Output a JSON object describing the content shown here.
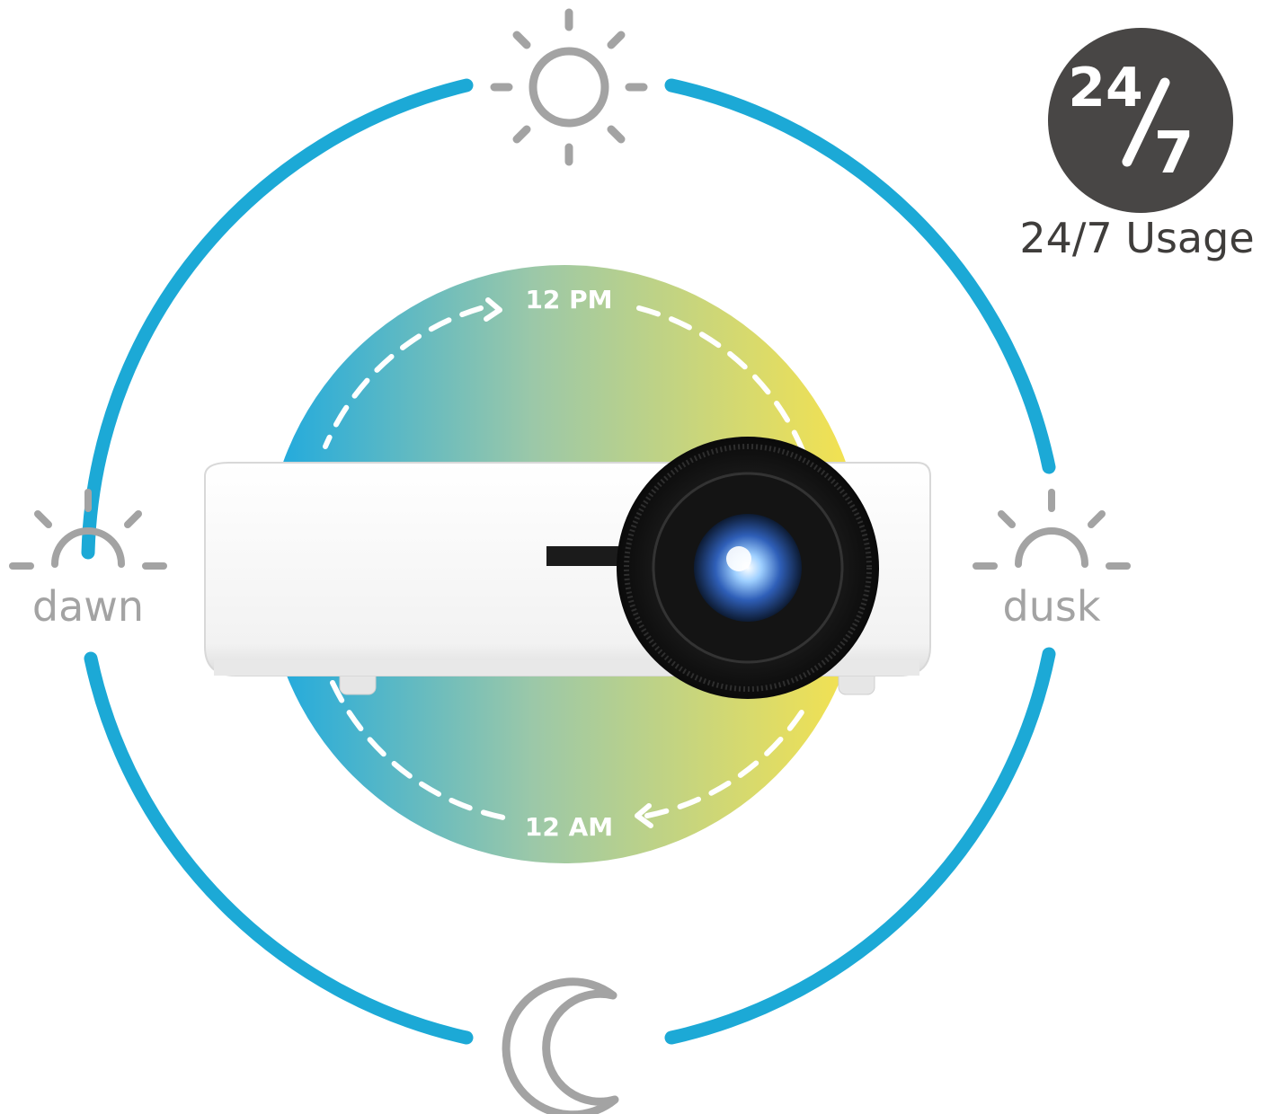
{
  "badge": {
    "top": "24",
    "bottom": "7",
    "caption": "24/7 Usage"
  },
  "labels": {
    "dawn": "dawn",
    "dusk": "dusk",
    "noon_marker": "12 PM",
    "midnight_marker": "12 AM"
  },
  "icons": {
    "top": "sun-icon",
    "left": "sunrise-icon",
    "right": "sunset-icon",
    "bottom": "moon-icon"
  },
  "colors": {
    "ring": "#1ca9d6",
    "icon_gray": "#a3a3a3",
    "badge_bg": "#484645",
    "gradient_start": "#1ca9e0",
    "gradient_end": "#f5e352",
    "lens": "#111111"
  }
}
